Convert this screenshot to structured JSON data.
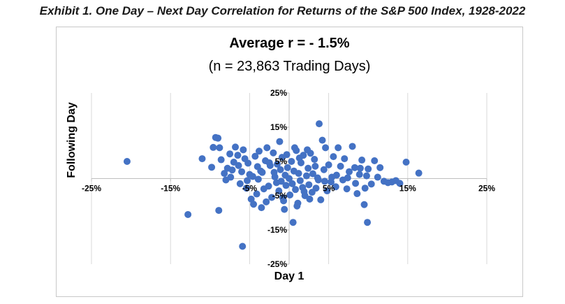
{
  "exhibit_title": "Exhibit 1. One Day – Next Day Correlation for Returns of the S&P 500 Index, 1928-2022",
  "chart_data": {
    "type": "scatter",
    "title": "Average r = - 1.5%",
    "subtitle": "(n = 23,863 Trading Days)",
    "xlabel": "Day 1",
    "ylabel": "Following Day",
    "xlim": [
      -25,
      25
    ],
    "ylim": [
      -25,
      25
    ],
    "x_ticks": [
      -25,
      -15,
      -5,
      5,
      15,
      25
    ],
    "y_ticks": [
      25,
      15,
      5,
      -5,
      -15,
      -25
    ],
    "x_tick_labels": [
      "-25%",
      "-15%",
      "-5%",
      "5%",
      "15%",
      "25%"
    ],
    "y_tick_labels": [
      "25%",
      "15%",
      "5%",
      "-5%",
      "-15%",
      "-25%"
    ],
    "gridlines": "vertical",
    "marker_color": "#4472C4",
    "points": [
      [
        -20.5,
        5.0
      ],
      [
        -12.8,
        -10.5
      ],
      [
        -11.0,
        5.8
      ],
      [
        -8.9,
        -9.3
      ],
      [
        -9.3,
        12.0
      ],
      [
        -8.8,
        9.0
      ],
      [
        -9.6,
        9.1
      ],
      [
        -9.0,
        11.8
      ],
      [
        -9.8,
        3.3
      ],
      [
        -8.6,
        5.5
      ],
      [
        -8.2,
        1.5
      ],
      [
        -7.8,
        3.0
      ],
      [
        -7.5,
        7.2
      ],
      [
        -7.2,
        2.5
      ],
      [
        -7.0,
        4.8
      ],
      [
        -6.8,
        9.2
      ],
      [
        -6.5,
        6.8
      ],
      [
        -6.2,
        -1.5
      ],
      [
        -6.0,
        2.0
      ],
      [
        -5.8,
        8.4
      ],
      [
        -5.6,
        5.8
      ],
      [
        -5.4,
        -2.8
      ],
      [
        -5.2,
        4.5
      ],
      [
        -5.0,
        1.2
      ],
      [
        -4.8,
        -6.0
      ],
      [
        -4.5,
        -7.5
      ],
      [
        -4.3,
        6.5
      ],
      [
        -4.1,
        -4.5
      ],
      [
        -4.0,
        3.5
      ],
      [
        -3.8,
        8.0
      ],
      [
        -3.5,
        -8.5
      ],
      [
        -3.4,
        1.8
      ],
      [
        -3.2,
        -3.0
      ],
      [
        -3.0,
        5.2
      ],
      [
        -2.8,
        9.0
      ],
      [
        -2.6,
        -2.2
      ],
      [
        -2.4,
        3.8
      ],
      [
        -2.2,
        -5.5
      ],
      [
        -2.0,
        7.5
      ],
      [
        -1.8,
        0.5
      ],
      [
        -1.6,
        -1.2
      ],
      [
        -1.5,
        4.2
      ],
      [
        -1.3,
        -3.6
      ],
      [
        -1.1,
        2.6
      ],
      [
        -1.0,
        -0.8
      ],
      [
        -0.9,
        6.2
      ],
      [
        -0.7,
        -6.5
      ],
      [
        -0.5,
        1.0
      ],
      [
        -0.4,
        -2.0
      ],
      [
        -0.2,
        3.2
      ],
      [
        0.0,
        0.0
      ],
      [
        0.1,
        -4.8
      ],
      [
        0.3,
        5.0
      ],
      [
        0.4,
        -1.5
      ],
      [
        0.6,
        2.2
      ],
      [
        0.8,
        -3.2
      ],
      [
        0.9,
        8.2
      ],
      [
        1.1,
        -7.2
      ],
      [
        1.2,
        1.5
      ],
      [
        1.4,
        -0.6
      ],
      [
        1.5,
        4.6
      ],
      [
        1.7,
        -2.6
      ],
      [
        1.8,
        6.8
      ],
      [
        2.0,
        -5.0
      ],
      [
        2.2,
        0.8
      ],
      [
        2.4,
        3.0
      ],
      [
        2.5,
        -1.8
      ],
      [
        2.7,
        7.4
      ],
      [
        2.9,
        -4.0
      ],
      [
        3.0,
        1.4
      ],
      [
        3.2,
        5.6
      ],
      [
        3.4,
        -2.8
      ],
      [
        3.6,
        0.2
      ],
      [
        3.8,
        16.0
      ],
      [
        4.0,
        -6.2
      ],
      [
        4.2,
        11.2
      ],
      [
        4.4,
        2.6
      ],
      [
        4.6,
        9.0
      ],
      [
        4.8,
        -3.6
      ],
      [
        5.0,
        4.0
      ],
      [
        5.3,
        -1.0
      ],
      [
        5.6,
        6.4
      ],
      [
        5.9,
        -2.4
      ],
      [
        6.2,
        9.0
      ],
      [
        6.5,
        3.6
      ],
      [
        6.8,
        -0.4
      ],
      [
        7.0,
        5.8
      ],
      [
        7.3,
        -3.0
      ],
      [
        7.6,
        2.0
      ],
      [
        8.0,
        9.4
      ],
      [
        8.3,
        3.2
      ],
      [
        8.6,
        -4.4
      ],
      [
        8.9,
        1.2
      ],
      [
        9.2,
        5.4
      ],
      [
        9.5,
        -7.6
      ],
      [
        9.8,
        0.8
      ],
      [
        10.0,
        2.8
      ],
      [
        10.4,
        -1.6
      ],
      [
        10.8,
        5.2
      ],
      [
        11.2,
        0.4
      ],
      [
        9.6,
        -2.8
      ],
      [
        9.9,
        -12.8
      ],
      [
        11.5,
        3.2
      ],
      [
        12.0,
        -0.8
      ],
      [
        12.5,
        -1.2
      ],
      [
        13.0,
        -1.0
      ],
      [
        13.5,
        -0.6
      ],
      [
        14.0,
        -1.4
      ],
      [
        14.8,
        4.8
      ],
      [
        16.4,
        1.6
      ],
      [
        -5.9,
        -19.8
      ],
      [
        0.5,
        -12.8
      ],
      [
        -0.8,
        -5.6
      ],
      [
        1.9,
        -3.8
      ],
      [
        -2.9,
        -6.8
      ],
      [
        2.6,
        -6.0
      ],
      [
        -3.6,
        2.2
      ],
      [
        3.3,
        3.6
      ],
      [
        -1.9,
        1.8
      ],
      [
        1.3,
        6.0
      ],
      [
        -4.6,
        0.6
      ],
      [
        4.5,
        -0.8
      ],
      [
        -6.4,
        3.8
      ],
      [
        6.0,
        1.0
      ],
      [
        -0.3,
        7.0
      ],
      [
        0.7,
        9.0
      ],
      [
        -1.2,
        10.8
      ],
      [
        -2.5,
        4.6
      ],
      [
        2.3,
        8.4
      ],
      [
        1.0,
        -8.0
      ],
      [
        -0.6,
        -9.0
      ],
      [
        -3.9,
        -0.2
      ],
      [
        3.7,
        -0.4
      ],
      [
        -5.3,
        -0.6
      ],
      [
        5.4,
        0.4
      ],
      [
        -7.4,
        0.4
      ],
      [
        7.4,
        0.2
      ],
      [
        8.4,
        -1.4
      ],
      [
        -8.0,
        -0.4
      ],
      [
        9.0,
        3.0
      ]
    ]
  }
}
